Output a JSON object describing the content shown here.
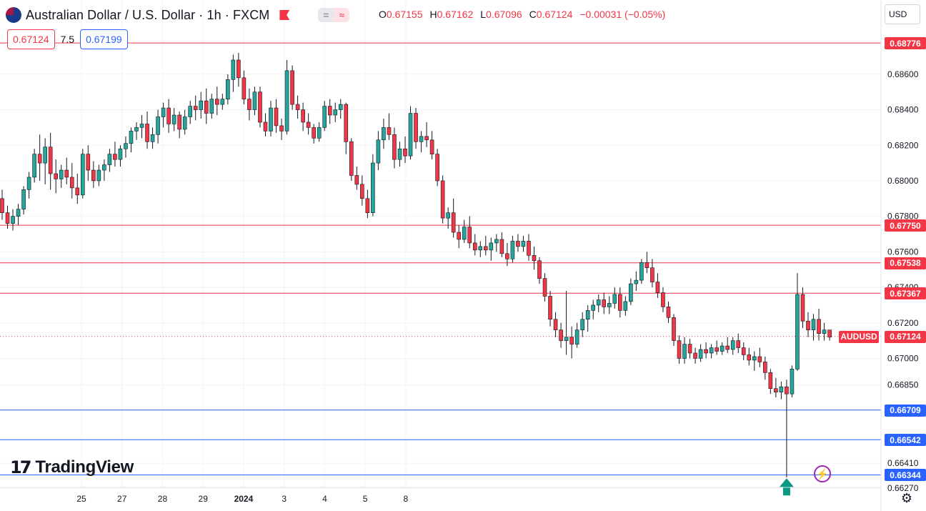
{
  "header": {
    "title": "Australian Dollar / U.S. Dollar · 1h · FXCM",
    "pill_left": "=",
    "pill_right": "≈",
    "ohlc": {
      "o_label": "O",
      "o": "0.67155",
      "h_label": "H",
      "h": "0.67162",
      "l_label": "L",
      "l": "0.67096",
      "c_label": "C",
      "c": "0.67124",
      "change": "−0.00031 (−0.05%)"
    }
  },
  "trade": {
    "sell": "0.67124",
    "spread": "7.5",
    "buy": "0.67199"
  },
  "currency": "USD",
  "symbol_tag": "AUDUSD",
  "brand": {
    "mark": "17",
    "name": "TradingView"
  },
  "icons": [
    "flag-icon",
    "bolt-icon",
    "gear-icon",
    "arrow-up-icon"
  ],
  "colors": {
    "up": "#26a69a",
    "down": "#f23645",
    "resistance": "#f23645",
    "support": "#2962ff",
    "arrow": "#089981"
  },
  "chart_data": {
    "type": "candlestick",
    "title": "Australian Dollar / U.S. Dollar · 1h · FXCM",
    "y_axis": {
      "ylim": [
        0.662,
        0.6895
      ],
      "ticks": [
        "0.68600",
        "0.68400",
        "0.68200",
        "0.68000",
        "0.67800",
        "0.67600",
        "0.67400",
        "0.67200",
        "0.67000",
        "0.66850",
        "0.66410",
        "0.66270"
      ]
    },
    "x_axis": {
      "ticks": [
        {
          "label": "25",
          "x": 37
        },
        {
          "label": "27",
          "x": 73
        },
        {
          "label": "28",
          "x": 109
        },
        {
          "label": "29",
          "x": 145
        },
        {
          "label": "2024",
          "x": 181
        },
        {
          "label": "3",
          "x": 217
        },
        {
          "label": "4",
          "x": 253
        },
        {
          "label": "5",
          "x": 289
        },
        {
          "label": "8",
          "x": 325
        }
      ]
    },
    "horizontal_levels": [
      {
        "price": 0.68776,
        "label": "0.68776",
        "kind": "resistance"
      },
      {
        "price": 0.6775,
        "label": "0.67750",
        "kind": "resistance"
      },
      {
        "price": 0.67538,
        "label": "0.67538",
        "kind": "resistance"
      },
      {
        "price": 0.67367,
        "label": "0.67367",
        "kind": "resistance"
      },
      {
        "price": 0.66709,
        "label": "0.66709",
        "kind": "support"
      },
      {
        "price": 0.66542,
        "label": "0.66542",
        "kind": "support"
      },
      {
        "price": 0.66344,
        "label": "0.66344",
        "kind": "support"
      }
    ],
    "last_price": {
      "price": 0.67124,
      "label": "0.67124"
    },
    "arrow": {
      "x": 281,
      "price": 0.66325,
      "direction": "up"
    },
    "candles": [
      [
        0,
        0.679,
        0.6795,
        0.6778,
        0.6782
      ],
      [
        1,
        0.6782,
        0.6786,
        0.6773,
        0.6776
      ],
      [
        2,
        0.6776,
        0.6784,
        0.6772,
        0.678
      ],
      [
        3,
        0.678,
        0.6787,
        0.6775,
        0.6784
      ],
      [
        4,
        0.6784,
        0.6797,
        0.6781,
        0.6795
      ],
      [
        5,
        0.6795,
        0.6805,
        0.679,
        0.6802
      ],
      [
        6,
        0.6802,
        0.6818,
        0.6799,
        0.6815
      ],
      [
        7,
        0.6815,
        0.6826,
        0.68,
        0.681
      ],
      [
        8,
        0.681,
        0.6824,
        0.6798,
        0.6819
      ],
      [
        9,
        0.6819,
        0.6827,
        0.6795,
        0.6804
      ],
      [
        10,
        0.6804,
        0.6812,
        0.6793,
        0.6801
      ],
      [
        11,
        0.6801,
        0.6809,
        0.6796,
        0.6806
      ],
      [
        12,
        0.6806,
        0.6813,
        0.6798,
        0.6802
      ],
      [
        13,
        0.6802,
        0.681,
        0.679,
        0.6796
      ],
      [
        14,
        0.6796,
        0.6804,
        0.6787,
        0.6792
      ],
      [
        15,
        0.6792,
        0.6818,
        0.679,
        0.6815
      ],
      [
        16,
        0.6815,
        0.682,
        0.68,
        0.6806
      ],
      [
        17,
        0.6806,
        0.6811,
        0.6796,
        0.68
      ],
      [
        18,
        0.68,
        0.6809,
        0.6797,
        0.6806
      ],
      [
        19,
        0.6806,
        0.6812,
        0.68,
        0.6809
      ],
      [
        20,
        0.6809,
        0.6818,
        0.6805,
        0.6815
      ],
      [
        21,
        0.6815,
        0.6822,
        0.6808,
        0.6812
      ],
      [
        22,
        0.6812,
        0.682,
        0.6808,
        0.6818
      ],
      [
        23,
        0.6818,
        0.6825,
        0.6813,
        0.6821
      ],
      [
        24,
        0.6821,
        0.683,
        0.6816,
        0.6828
      ],
      [
        25,
        0.6828,
        0.6833,
        0.6823,
        0.683
      ],
      [
        26,
        0.683,
        0.6837,
        0.6824,
        0.6832
      ],
      [
        27,
        0.6832,
        0.6839,
        0.6818,
        0.6822
      ],
      [
        28,
        0.6822,
        0.683,
        0.6818,
        0.6826
      ],
      [
        29,
        0.6826,
        0.684,
        0.6821,
        0.6836
      ],
      [
        30,
        0.6836,
        0.6844,
        0.683,
        0.6841
      ],
      [
        31,
        0.6841,
        0.6846,
        0.6827,
        0.6832
      ],
      [
        32,
        0.6832,
        0.6841,
        0.6828,
        0.6837
      ],
      [
        33,
        0.6837,
        0.6839,
        0.6824,
        0.6829
      ],
      [
        34,
        0.6829,
        0.684,
        0.6826,
        0.6836
      ],
      [
        35,
        0.6836,
        0.6845,
        0.6832,
        0.6842
      ],
      [
        36,
        0.6842,
        0.6848,
        0.6834,
        0.684
      ],
      [
        37,
        0.684,
        0.685,
        0.6835,
        0.6845
      ],
      [
        38,
        0.6845,
        0.6852,
        0.6832,
        0.6838
      ],
      [
        39,
        0.6838,
        0.6849,
        0.6835,
        0.6846
      ],
      [
        40,
        0.6846,
        0.6853,
        0.6837,
        0.6843
      ],
      [
        41,
        0.6843,
        0.6849,
        0.684,
        0.6846
      ],
      [
        42,
        0.6846,
        0.686,
        0.6843,
        0.6857
      ],
      [
        43,
        0.6857,
        0.6871,
        0.685,
        0.6868
      ],
      [
        44,
        0.6868,
        0.6872,
        0.6853,
        0.6858
      ],
      [
        45,
        0.6858,
        0.6862,
        0.6843,
        0.6846
      ],
      [
        46,
        0.6846,
        0.6852,
        0.6834,
        0.684
      ],
      [
        47,
        0.684,
        0.6853,
        0.6837,
        0.685
      ],
      [
        48,
        0.685,
        0.6853,
        0.683,
        0.6833
      ],
      [
        49,
        0.6833,
        0.6838,
        0.6825,
        0.6828
      ],
      [
        50,
        0.6828,
        0.6845,
        0.6825,
        0.6841
      ],
      [
        51,
        0.6841,
        0.6846,
        0.6827,
        0.6831
      ],
      [
        52,
        0.6831,
        0.6835,
        0.6823,
        0.6828
      ],
      [
        53,
        0.6828,
        0.6868,
        0.6826,
        0.6862
      ],
      [
        54,
        0.6862,
        0.6865,
        0.684,
        0.6843
      ],
      [
        55,
        0.6843,
        0.6848,
        0.6835,
        0.684
      ],
      [
        56,
        0.684,
        0.6844,
        0.6828,
        0.6833
      ],
      [
        57,
        0.6833,
        0.6838,
        0.6826,
        0.683
      ],
      [
        58,
        0.683,
        0.6832,
        0.6821,
        0.6824
      ],
      [
        59,
        0.6824,
        0.6833,
        0.6822,
        0.683
      ],
      [
        60,
        0.683,
        0.6845,
        0.6828,
        0.6842
      ],
      [
        61,
        0.6842,
        0.6846,
        0.6832,
        0.6837
      ],
      [
        62,
        0.6837,
        0.6844,
        0.6833,
        0.684
      ],
      [
        63,
        0.684,
        0.6846,
        0.6835,
        0.6843
      ],
      [
        64,
        0.6843,
        0.6844,
        0.6815,
        0.6822
      ],
      [
        65,
        0.6822,
        0.6824,
        0.68,
        0.6803
      ],
      [
        66,
        0.6803,
        0.6808,
        0.6795,
        0.6798
      ],
      [
        67,
        0.6798,
        0.6803,
        0.6786,
        0.679
      ],
      [
        68,
        0.679,
        0.6795,
        0.6779,
        0.6782
      ],
      [
        69,
        0.6782,
        0.6815,
        0.678,
        0.681
      ],
      [
        70,
        0.681,
        0.6828,
        0.6806,
        0.6823
      ],
      [
        71,
        0.6823,
        0.6835,
        0.6818,
        0.683
      ],
      [
        72,
        0.683,
        0.6838,
        0.6823,
        0.6826
      ],
      [
        73,
        0.6826,
        0.683,
        0.6807,
        0.6812
      ],
      [
        74,
        0.6812,
        0.6822,
        0.6808,
        0.6818
      ],
      [
        75,
        0.6818,
        0.6825,
        0.681,
        0.6814
      ],
      [
        76,
        0.6814,
        0.6842,
        0.6812,
        0.6838
      ],
      [
        77,
        0.6838,
        0.6841,
        0.6818,
        0.6822
      ],
      [
        78,
        0.6822,
        0.6828,
        0.6816,
        0.6825
      ],
      [
        79,
        0.6825,
        0.6833,
        0.6819,
        0.6823
      ],
      [
        80,
        0.6823,
        0.6828,
        0.6812,
        0.6815
      ],
      [
        81,
        0.6815,
        0.6818,
        0.6797,
        0.68
      ],
      [
        82,
        0.68,
        0.6803,
        0.6776,
        0.6779
      ],
      [
        83,
        0.6779,
        0.6785,
        0.6773,
        0.6782
      ],
      [
        84,
        0.6782,
        0.679,
        0.6768,
        0.6771
      ],
      [
        85,
        0.6771,
        0.6775,
        0.6762,
        0.6767
      ],
      [
        86,
        0.6767,
        0.6778,
        0.6765,
        0.6774
      ],
      [
        87,
        0.6774,
        0.678,
        0.6762,
        0.6765
      ],
      [
        88,
        0.6765,
        0.677,
        0.6758,
        0.6761
      ],
      [
        89,
        0.6761,
        0.6766,
        0.6757,
        0.6763
      ],
      [
        90,
        0.6763,
        0.6769,
        0.6758,
        0.6761
      ],
      [
        91,
        0.6761,
        0.6768,
        0.6755,
        0.6765
      ],
      [
        92,
        0.6765,
        0.677,
        0.676,
        0.6767
      ],
      [
        93,
        0.6767,
        0.6771,
        0.6757,
        0.6759
      ],
      [
        94,
        0.6759,
        0.6765,
        0.6752,
        0.6756
      ],
      [
        95,
        0.6756,
        0.6769,
        0.6754,
        0.6766
      ],
      [
        96,
        0.6766,
        0.677,
        0.676,
        0.6763
      ],
      [
        97,
        0.6763,
        0.6769,
        0.676,
        0.6766
      ],
      [
        98,
        0.6766,
        0.677,
        0.6755,
        0.6758
      ],
      [
        99,
        0.6758,
        0.6763,
        0.675,
        0.6755
      ],
      [
        100,
        0.6755,
        0.6757,
        0.6742,
        0.6745
      ],
      [
        101,
        0.6745,
        0.6748,
        0.6732,
        0.6735
      ],
      [
        102,
        0.6735,
        0.6738,
        0.6718,
        0.6722
      ],
      [
        103,
        0.6722,
        0.6726,
        0.6712,
        0.6716
      ],
      [
        104,
        0.6716,
        0.672,
        0.6706,
        0.671
      ],
      [
        105,
        0.671,
        0.6738,
        0.6702,
        0.6712
      ],
      [
        106,
        0.6712,
        0.6718,
        0.67,
        0.6708
      ],
      [
        107,
        0.6708,
        0.672,
        0.6706,
        0.6716
      ],
      [
        108,
        0.6716,
        0.6726,
        0.6712,
        0.6722
      ],
      [
        109,
        0.6722,
        0.673,
        0.6715,
        0.6727
      ],
      [
        110,
        0.6727,
        0.6733,
        0.6722,
        0.673
      ],
      [
        111,
        0.673,
        0.6736,
        0.6726,
        0.6733
      ],
      [
        112,
        0.6733,
        0.6737,
        0.6725,
        0.6729
      ],
      [
        113,
        0.6729,
        0.6735,
        0.6725,
        0.6731
      ],
      [
        114,
        0.6731,
        0.674,
        0.6728,
        0.6736
      ],
      [
        115,
        0.6736,
        0.674,
        0.6723,
        0.6727
      ],
      [
        116,
        0.6727,
        0.6735,
        0.6724,
        0.6732
      ],
      [
        117,
        0.6732,
        0.6745,
        0.673,
        0.6742
      ],
      [
        118,
        0.6742,
        0.6749,
        0.6738,
        0.6744
      ],
      [
        119,
        0.6744,
        0.6756,
        0.6742,
        0.6754
      ],
      [
        120,
        0.6754,
        0.676,
        0.6748,
        0.6751
      ],
      [
        121,
        0.6751,
        0.6756,
        0.674,
        0.6743
      ],
      [
        122,
        0.6743,
        0.6748,
        0.6734,
        0.6737
      ],
      [
        123,
        0.6737,
        0.674,
        0.6726,
        0.6729
      ],
      [
        124,
        0.6729,
        0.6732,
        0.672,
        0.6723
      ],
      [
        125,
        0.6723,
        0.6725,
        0.6707,
        0.671
      ],
      [
        126,
        0.671,
        0.6713,
        0.6697,
        0.67
      ],
      [
        127,
        0.67,
        0.6712,
        0.6697,
        0.6708
      ],
      [
        128,
        0.6708,
        0.6711,
        0.67,
        0.6703
      ],
      [
        129,
        0.6703,
        0.6706,
        0.6697,
        0.67
      ],
      [
        130,
        0.67,
        0.6708,
        0.6698,
        0.6705
      ],
      [
        131,
        0.6705,
        0.6709,
        0.67,
        0.6703
      ],
      [
        132,
        0.6703,
        0.6708,
        0.67,
        0.6706
      ],
      [
        133,
        0.6706,
        0.671,
        0.6702,
        0.6704
      ],
      [
        134,
        0.6704,
        0.6709,
        0.6702,
        0.6707
      ],
      [
        135,
        0.6707,
        0.6712,
        0.6703,
        0.6705
      ],
      [
        136,
        0.6705,
        0.6712,
        0.6702,
        0.671
      ],
      [
        137,
        0.671,
        0.6714,
        0.6703,
        0.6706
      ],
      [
        138,
        0.6706,
        0.6709,
        0.6699,
        0.6702
      ],
      [
        139,
        0.6702,
        0.6706,
        0.6696,
        0.6699
      ],
      [
        140,
        0.6699,
        0.6704,
        0.6693,
        0.6701
      ],
      [
        141,
        0.6701,
        0.6706,
        0.6695,
        0.6698
      ],
      [
        142,
        0.6698,
        0.6701,
        0.6688,
        0.6692
      ],
      [
        143,
        0.6692,
        0.6694,
        0.668,
        0.6683
      ],
      [
        144,
        0.6683,
        0.6689,
        0.6678,
        0.6681
      ],
      [
        145,
        0.6681,
        0.6687,
        0.6677,
        0.6684
      ],
      [
        146,
        0.6684,
        0.6688,
        0.6633,
        0.668
      ],
      [
        147,
        0.668,
        0.6696,
        0.6678,
        0.6694
      ],
      [
        148,
        0.6694,
        0.6748,
        0.6693,
        0.6736
      ],
      [
        149,
        0.6736,
        0.674,
        0.6717,
        0.6721
      ],
      [
        150,
        0.6721,
        0.6726,
        0.6712,
        0.6716
      ],
      [
        151,
        0.6716,
        0.6725,
        0.671,
        0.6722
      ],
      [
        152,
        0.6722,
        0.6728,
        0.671,
        0.6714
      ],
      [
        153,
        0.6714,
        0.672,
        0.671,
        0.6716
      ],
      [
        154,
        0.6716,
        0.6716,
        0.671,
        0.6712
      ]
    ]
  }
}
